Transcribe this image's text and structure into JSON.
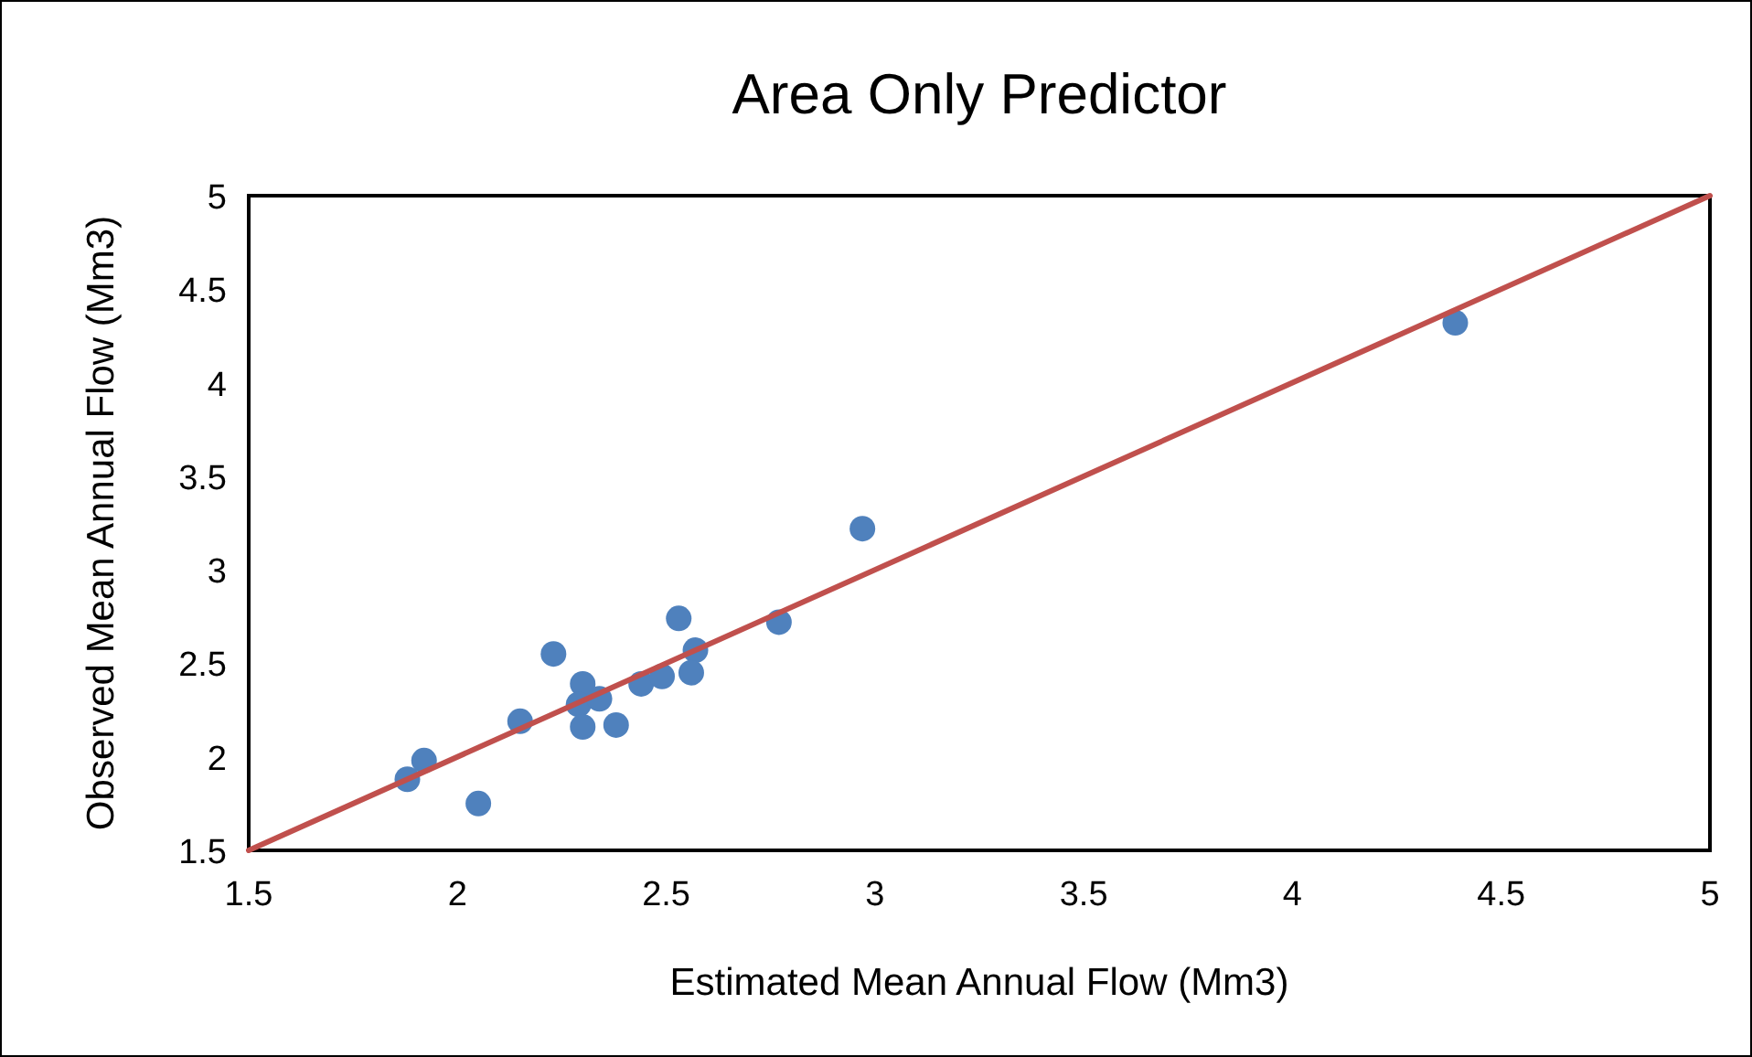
{
  "chart_data": {
    "type": "scatter",
    "title": "Area Only Predictor",
    "xlabel": "Estimated Mean Annual Flow (Mm3)",
    "ylabel": "Observed Mean Annual Flow (Mm3)",
    "xlim": [
      1.5,
      5
    ],
    "ylim": [
      1.5,
      5
    ],
    "xticks": [
      1.5,
      2,
      2.5,
      3,
      3.5,
      4,
      4.5,
      5
    ],
    "yticks": [
      1.5,
      2,
      2.5,
      3,
      3.5,
      4,
      4.5,
      5
    ],
    "grid": false,
    "series": [
      {
        "marker": "circle",
        "color": "#4f81bd",
        "x": [
          1.88,
          1.92,
          2.05,
          2.15,
          2.23,
          2.3,
          2.29,
          2.3,
          2.34,
          2.38,
          2.44,
          2.49,
          2.53,
          2.57,
          2.56,
          2.77,
          2.97,
          4.39
        ],
        "values": [
          1.88,
          1.98,
          1.75,
          2.19,
          2.55,
          2.39,
          2.28,
          2.16,
          2.31,
          2.17,
          2.39,
          2.43,
          2.74,
          2.57,
          2.45,
          2.72,
          3.22,
          4.32
        ]
      },
      {
        "type": "line",
        "marker": "none",
        "color": "#c0504d",
        "x": [
          1.5,
          5
        ],
        "values": [
          1.5,
          5
        ]
      }
    ]
  }
}
